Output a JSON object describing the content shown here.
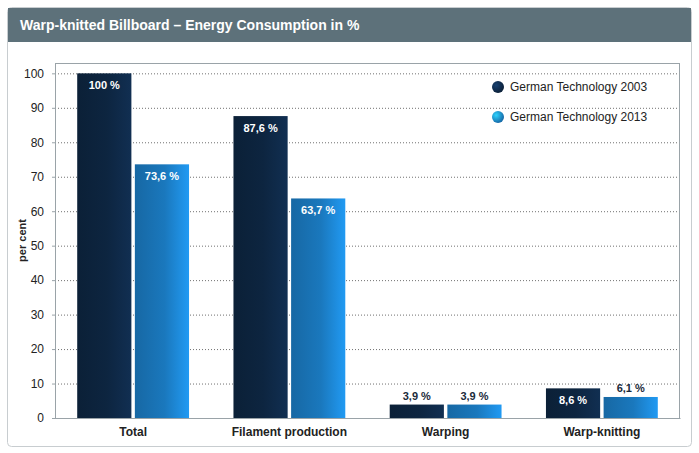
{
  "chart_data": {
    "type": "bar",
    "title": "Warp-knitted Billboard – Energy Consumption in %",
    "y_label": "per cent",
    "categories": [
      "Total",
      "Filament production",
      "Warping",
      "Warp-knitting"
    ],
    "series": [
      {
        "name": "German Technology 2003",
        "color": "#0d2540",
        "values": [
          100,
          87.6,
          3.9,
          8.6
        ],
        "value_labels": [
          "100 %",
          "87,6 %",
          "3,9 %",
          "8,6 %"
        ]
      },
      {
        "name": "German Technology 2013",
        "color": "#1a78bd",
        "values": [
          73.6,
          63.7,
          3.9,
          6.1
        ],
        "value_labels": [
          "73,6 %",
          "63,7 %",
          "3,9 %",
          "6,1 %"
        ]
      }
    ],
    "ylim": [
      0,
      103
    ],
    "yticks": [
      0,
      10,
      20,
      30,
      40,
      50,
      60,
      70,
      80,
      90,
      100
    ],
    "grid": true,
    "legend": "top-right",
    "data_labels": true
  }
}
